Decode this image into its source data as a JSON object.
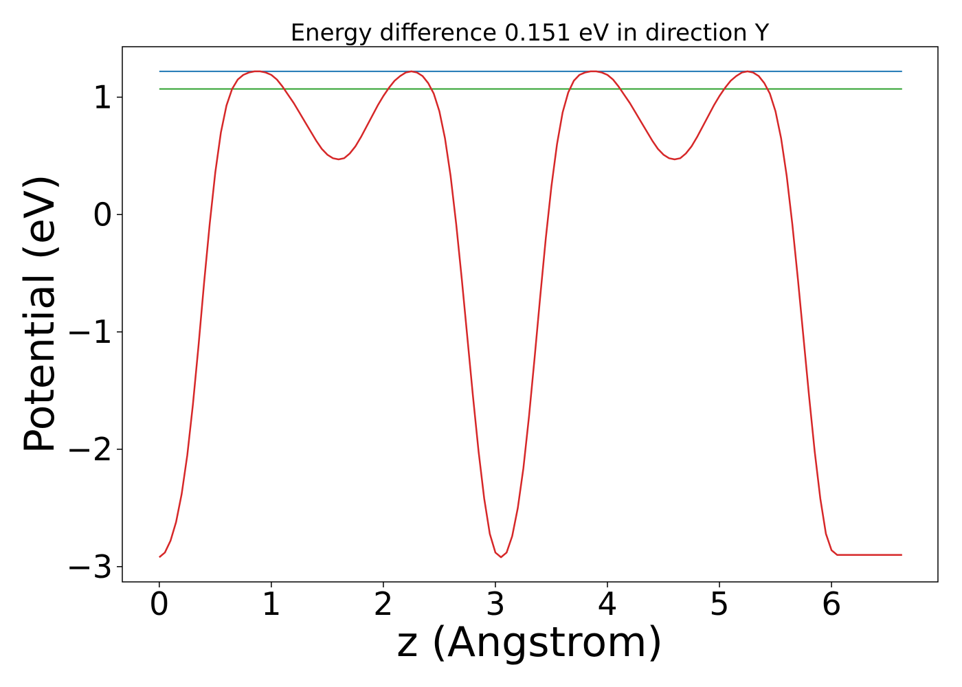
{
  "chart_data": {
    "type": "line",
    "title": "Energy difference 0.151 eV in direction Y",
    "xlabel": "z (Angstrom)",
    "ylabel": "Potential (eV)",
    "xlim": [
      -0.33,
      6.95
    ],
    "ylim": [
      -3.13,
      1.43
    ],
    "grid": false,
    "x_ticks": [
      0,
      1,
      2,
      3,
      4,
      5,
      6
    ],
    "x_tick_labels": [
      "0",
      "1",
      "2",
      "3",
      "4",
      "5",
      "6"
    ],
    "y_ticks": [
      -3,
      -2,
      -1,
      0,
      1
    ],
    "y_tick_labels": [
      "−3",
      "−2",
      "−1",
      "0",
      "1"
    ],
    "series": [
      {
        "color": "#d62728",
        "style": "curve",
        "x": [
          0.0,
          0.05,
          0.1,
          0.15,
          0.2,
          0.25,
          0.3,
          0.35,
          0.4,
          0.45,
          0.5,
          0.55,
          0.6,
          0.65,
          0.7,
          0.75,
          0.8,
          0.85,
          0.9,
          0.95,
          1.0,
          1.05,
          1.1,
          1.15,
          1.2,
          1.25,
          1.3,
          1.35,
          1.4,
          1.45,
          1.5,
          1.55,
          1.6,
          1.65,
          1.7,
          1.75,
          1.8,
          1.85,
          1.9,
          1.95,
          2.0,
          2.05,
          2.1,
          2.15,
          2.2,
          2.25,
          2.3,
          2.35,
          2.4,
          2.45,
          2.5,
          2.55,
          2.6,
          2.65,
          2.7,
          2.75,
          2.8,
          2.85,
          2.9,
          2.95,
          3.0,
          3.05,
          3.1,
          3.15,
          3.2,
          3.25,
          3.3,
          3.35,
          3.4,
          3.45,
          3.5,
          3.55,
          3.6,
          3.65,
          3.7,
          3.75,
          3.8,
          3.85,
          3.9,
          3.95,
          4.0,
          4.05,
          4.1,
          4.15,
          4.2,
          4.25,
          4.3,
          4.35,
          4.4,
          4.45,
          4.5,
          4.55,
          4.6,
          4.65,
          4.7,
          4.75,
          4.8,
          4.85,
          4.9,
          4.95,
          5.0,
          5.05,
          5.1,
          5.15,
          5.2,
          5.25,
          5.3,
          5.35,
          5.4,
          5.45,
          5.5,
          5.55,
          5.6,
          5.65,
          5.7,
          5.75,
          5.8,
          5.85,
          5.9,
          5.95,
          6.0,
          6.05,
          6.1,
          6.15,
          6.2,
          6.25,
          6.3,
          6.35,
          6.4,
          6.45,
          6.5,
          6.55,
          6.6,
          6.63
        ],
        "y": [
          -2.92,
          -2.88,
          -2.78,
          -2.62,
          -2.38,
          -2.05,
          -1.62,
          -1.12,
          -0.58,
          -0.08,
          0.36,
          0.7,
          0.93,
          1.07,
          1.15,
          1.19,
          1.21,
          1.22,
          1.22,
          1.21,
          1.19,
          1.15,
          1.09,
          1.02,
          0.95,
          0.87,
          0.79,
          0.71,
          0.63,
          0.56,
          0.51,
          0.48,
          0.47,
          0.48,
          0.52,
          0.58,
          0.66,
          0.75,
          0.84,
          0.93,
          1.01,
          1.08,
          1.14,
          1.18,
          1.21,
          1.22,
          1.21,
          1.18,
          1.12,
          1.03,
          0.88,
          0.65,
          0.33,
          -0.08,
          -0.55,
          -1.05,
          -1.55,
          -2.02,
          -2.42,
          -2.72,
          -2.88,
          -2.92,
          -2.88,
          -2.74,
          -2.5,
          -2.16,
          -1.72,
          -1.22,
          -0.7,
          -0.2,
          0.24,
          0.6,
          0.87,
          1.04,
          1.14,
          1.19,
          1.21,
          1.22,
          1.22,
          1.21,
          1.19,
          1.15,
          1.09,
          1.02,
          0.95,
          0.87,
          0.79,
          0.71,
          0.63,
          0.56,
          0.51,
          0.48,
          0.47,
          0.48,
          0.52,
          0.58,
          0.66,
          0.75,
          0.84,
          0.93,
          1.01,
          1.08,
          1.14,
          1.18,
          1.21,
          1.22,
          1.21,
          1.18,
          1.12,
          1.03,
          0.88,
          0.65,
          0.33,
          -0.08,
          -0.55,
          -1.05,
          -1.55,
          -2.02,
          -2.42,
          -2.72,
          -2.86,
          -2.9,
          -2.9,
          -2.9,
          -2.9,
          -2.9,
          -2.9,
          -2.9,
          -2.9,
          -2.9,
          -2.9,
          -2.9,
          -2.9,
          -2.9
        ]
      },
      {
        "color": "#1f77b4",
        "style": "hline",
        "x": [
          0,
          6.63
        ],
        "y": [
          1.22,
          1.22
        ]
      },
      {
        "color": "#2ca02c",
        "style": "hline",
        "x": [
          0,
          6.63
        ],
        "y": [
          1.07,
          1.07
        ]
      }
    ]
  }
}
